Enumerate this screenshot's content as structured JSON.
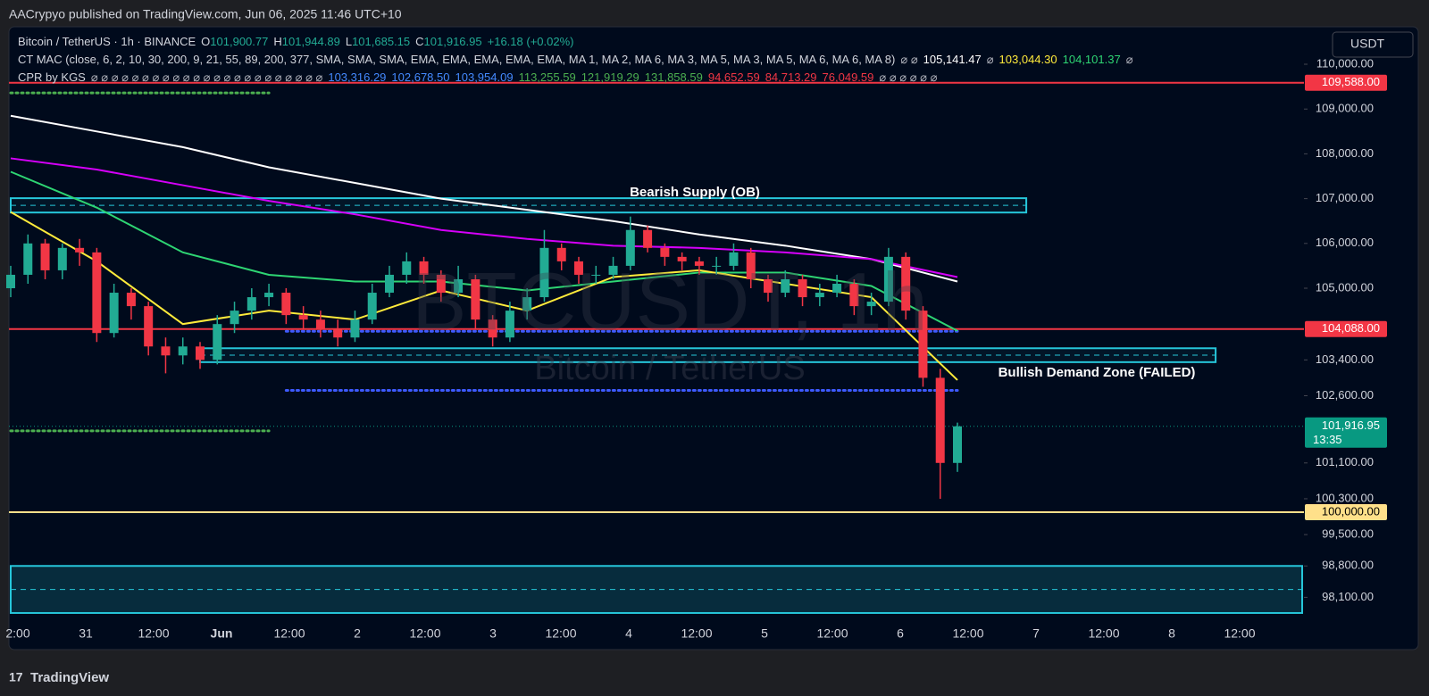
{
  "header": "AACrypyo published on TradingView.com, Jun 06, 2025 11:46 UTC+10",
  "footer": "TradingView",
  "chart_data": {
    "type": "candlestick",
    "watermark": "BTCUSDT, 1h",
    "watermark_sub": "Bitcoin / TetherUS",
    "currency": "USDT",
    "legend": [
      [
        {
          "text": "Bitcoin / TetherUS · 1h · BINANCE",
          "color": "#d1d4dc"
        },
        {
          "text": "O",
          "color": "#d1d4dc"
        },
        {
          "text": "101,900.77",
          "color": "#22ab94"
        },
        {
          "text": "H",
          "color": "#d1d4dc"
        },
        {
          "text": "101,944.89",
          "color": "#22ab94"
        },
        {
          "text": "L",
          "color": "#d1d4dc"
        },
        {
          "text": "101,685.15",
          "color": "#22ab94"
        },
        {
          "text": "C",
          "color": "#d1d4dc"
        },
        {
          "text": "101,916.95",
          "color": "#22ab94"
        },
        {
          "text": "+16.18 (+0.02%)",
          "color": "#22ab94"
        }
      ],
      [
        {
          "text": "CT MAC (close, 6, 2, 10, 30, 200, 9, 21, 55, 89, 200, 377, SMA, SMA, SMA, EMA, EMA, EMA, EMA, EMA, MA 1, MA 2, MA 6, MA 3, MA 5, MA 3, MA 5, MA 6, MA 6, MA 8)",
          "color": "#d1d4dc"
        },
        {
          "text": "⌀ ⌀",
          "color": "#b2b5be"
        },
        {
          "text": "105,141.47",
          "color": "#ffffff"
        },
        {
          "text": "⌀",
          "color": "#b2b5be"
        },
        {
          "text": "103,044.30",
          "color": "#ffeb3b"
        },
        {
          "text": "104,101.37",
          "color": "#2ed573"
        },
        {
          "text": "⌀",
          "color": "#b2b5be"
        }
      ],
      [
        {
          "text": "CPR by KGS",
          "color": "#d1d4dc"
        },
        {
          "text": "⌀ ⌀ ⌀ ⌀ ⌀ ⌀ ⌀ ⌀ ⌀ ⌀ ⌀ ⌀ ⌀ ⌀ ⌀ ⌀ ⌀ ⌀ ⌀ ⌀ ⌀ ⌀ ⌀",
          "color": "#b2b5be"
        },
        {
          "text": "103,316.29",
          "color": "#448aff"
        },
        {
          "text": "102,678.50",
          "color": "#448aff"
        },
        {
          "text": "103,954.09",
          "color": "#448aff"
        },
        {
          "text": "113,255.59",
          "color": "#4caf50"
        },
        {
          "text": "121,919.29",
          "color": "#4caf50"
        },
        {
          "text": "131,858.59",
          "color": "#4caf50"
        },
        {
          "text": "94,652.59",
          "color": "#f23645"
        },
        {
          "text": "84,713.29",
          "color": "#f23645"
        },
        {
          "text": "76,049.59",
          "color": "#f23645"
        },
        {
          "text": "⌀ ⌀ ⌀ ⌀ ⌀ ⌀",
          "color": "#b2b5be"
        }
      ]
    ],
    "xticks": [
      "2:00",
      "31",
      "12:00",
      "Jun",
      "12:00",
      "2",
      "12:00",
      "3",
      "12:00",
      "4",
      "12:00",
      "5",
      "12:00",
      "6",
      "12:00",
      "7",
      "12:00",
      "8",
      "12:00"
    ],
    "ylim": [
      97590,
      111036
    ],
    "yticks": [
      {
        "value": 110000,
        "label": "110,000.00"
      },
      {
        "value": 109000,
        "label": "109,000.00"
      },
      {
        "value": 108000,
        "label": "108,000.00"
      },
      {
        "value": 107000,
        "label": "107,000.00"
      },
      {
        "value": 106000,
        "label": "106,000.00"
      },
      {
        "value": 105000,
        "label": "105,000.00"
      },
      {
        "value": 103400,
        "label": "103,400.00"
      },
      {
        "value": 102600,
        "label": "102,600.00"
      },
      {
        "value": 101100,
        "label": "101,100.00"
      },
      {
        "value": 100300,
        "label": "100,300.00"
      },
      {
        "value": 99500,
        "label": "99,500.00"
      },
      {
        "value": 98800,
        "label": "98,800.00"
      },
      {
        "value": 98100,
        "label": "98,100.00"
      }
    ],
    "up_color": "#22ab94",
    "down_color": "#f23645",
    "candles": [
      [
        105000,
        105500,
        104800,
        105300
      ],
      [
        105300,
        106200,
        105100,
        106000
      ],
      [
        106000,
        106100,
        105200,
        105400
      ],
      [
        105400,
        106000,
        105200,
        105900
      ],
      [
        105900,
        106100,
        105500,
        105800
      ],
      [
        105800,
        105900,
        103800,
        104000
      ],
      [
        104000,
        105100,
        103900,
        104900
      ],
      [
        104900,
        105000,
        104300,
        104600
      ],
      [
        104600,
        104700,
        103500,
        103700
      ],
      [
        103700,
        103900,
        103100,
        103500
      ],
      [
        103500,
        103900,
        103300,
        103700
      ],
      [
        103700,
        103800,
        103200,
        103400
      ],
      [
        103400,
        104400,
        103300,
        104200
      ],
      [
        104200,
        104700,
        104000,
        104500
      ],
      [
        104500,
        105000,
        104300,
        104800
      ],
      [
        104800,
        105100,
        104600,
        104900
      ],
      [
        104900,
        105000,
        104200,
        104400
      ],
      [
        104400,
        104600,
        104100,
        104300
      ],
      [
        104300,
        104500,
        103900,
        104100
      ],
      [
        104100,
        104300,
        103700,
        103900
      ],
      [
        103900,
        104500,
        103800,
        104300
      ],
      [
        104300,
        105100,
        104200,
        104900
      ],
      [
        104900,
        105500,
        104800,
        105300
      ],
      [
        105300,
        105800,
        105100,
        105600
      ],
      [
        105600,
        105700,
        105100,
        105300
      ],
      [
        105300,
        105400,
        104700,
        104900
      ],
      [
        104900,
        105500,
        104800,
        105200
      ],
      [
        105200,
        105300,
        104100,
        104300
      ],
      [
        104300,
        104400,
        103700,
        103900
      ],
      [
        103900,
        104700,
        103800,
        104500
      ],
      [
        104500,
        105000,
        104300,
        104800
      ],
      [
        104800,
        106300,
        104700,
        105900
      ],
      [
        105900,
        106000,
        105400,
        105600
      ],
      [
        105600,
        105700,
        105100,
        105300
      ],
      [
        105300,
        105500,
        105100,
        105300
      ],
      [
        105300,
        105700,
        105200,
        105500
      ],
      [
        105500,
        106600,
        105400,
        106300
      ],
      [
        106300,
        106400,
        105800,
        105900
      ],
      [
        105900,
        106000,
        105500,
        105700
      ],
      [
        105700,
        105800,
        105400,
        105600
      ],
      [
        105600,
        105700,
        105300,
        105500
      ],
      [
        105500,
        105700,
        105300,
        105500
      ],
      [
        105500,
        106000,
        105400,
        105800
      ],
      [
        105800,
        105900,
        105000,
        105200
      ],
      [
        105200,
        105300,
        104700,
        104900
      ],
      [
        104900,
        105400,
        104800,
        105200
      ],
      [
        105200,
        105300,
        104600,
        104800
      ],
      [
        104800,
        105100,
        104600,
        104900
      ],
      [
        104900,
        105300,
        104800,
        105100
      ],
      [
        105100,
        105200,
        104400,
        104600
      ],
      [
        104600,
        104900,
        104400,
        104700
      ],
      [
        104700,
        105900,
        104600,
        105700
      ],
      [
        105700,
        105800,
        104300,
        104500
      ],
      [
        104500,
        104600,
        102800,
        103000
      ],
      [
        103000,
        103200,
        100300,
        101100
      ],
      [
        101100,
        102000,
        100900,
        101916.95
      ]
    ],
    "ma_index": [
      0,
      5,
      10,
      15,
      20,
      25,
      30,
      35,
      40,
      45,
      50,
      55
    ],
    "series": [
      {
        "color": "#ffffff",
        "values": [
          108850,
          108500,
          108150,
          107700,
          107350,
          107000,
          106750,
          106500,
          106200,
          105950,
          105650,
          105150
        ]
      },
      {
        "color": "#d500f9",
        "values": [
          107900,
          107650,
          107300,
          106950,
          106650,
          106300,
          106100,
          105950,
          105900,
          105800,
          105650,
          105250
        ]
      },
      {
        "color": "#2ed573",
        "values": [
          107600,
          106800,
          105800,
          105300,
          105150,
          105150,
          104950,
          105150,
          105350,
          105350,
          105050,
          104050
        ]
      },
      {
        "color": "#ffeb3b",
        "values": [
          106700,
          105600,
          104200,
          104500,
          104300,
          104950,
          104500,
          105250,
          105400,
          105100,
          104800,
          102950
        ]
      }
    ],
    "levels": [
      {
        "value": 109588,
        "label": "109,588.00",
        "color": "#f23645"
      },
      {
        "value": 104088,
        "label": "104,088.00",
        "color": "#f23645"
      },
      {
        "value": 100000,
        "label": "100,000.00",
        "color": "#ffe08a"
      }
    ],
    "last_price": {
      "value": 101916.95,
      "label": "101,916.95",
      "countdown": "13:35",
      "color": "#089981"
    },
    "zones": [
      {
        "top": 107010,
        "bottom": 106690,
        "start": 0,
        "end": 59,
        "label": "Bearish Supply (OB)",
        "color": "#26c6da"
      },
      {
        "top": 103660,
        "bottom": 103350,
        "start": 11,
        "end": 70,
        "label": "Bullish Demand Zone (FAILED)",
        "color": "#26c6da"
      },
      {
        "top": 98800,
        "bottom": 97750,
        "start": 0,
        "end": 76,
        "color": "#26c6da"
      }
    ],
    "dotted": [
      {
        "value": 109360,
        "start": 0,
        "end": 15,
        "color": "#4caf50"
      },
      {
        "value": 101815,
        "start": 0,
        "end": 15,
        "color": "#4caf50"
      },
      {
        "value": 104040,
        "start": 16,
        "end": 55,
        "color": "#3d5afe"
      },
      {
        "value": 102720,
        "start": 16,
        "end": 55,
        "color": "#3d5afe"
      }
    ]
  }
}
